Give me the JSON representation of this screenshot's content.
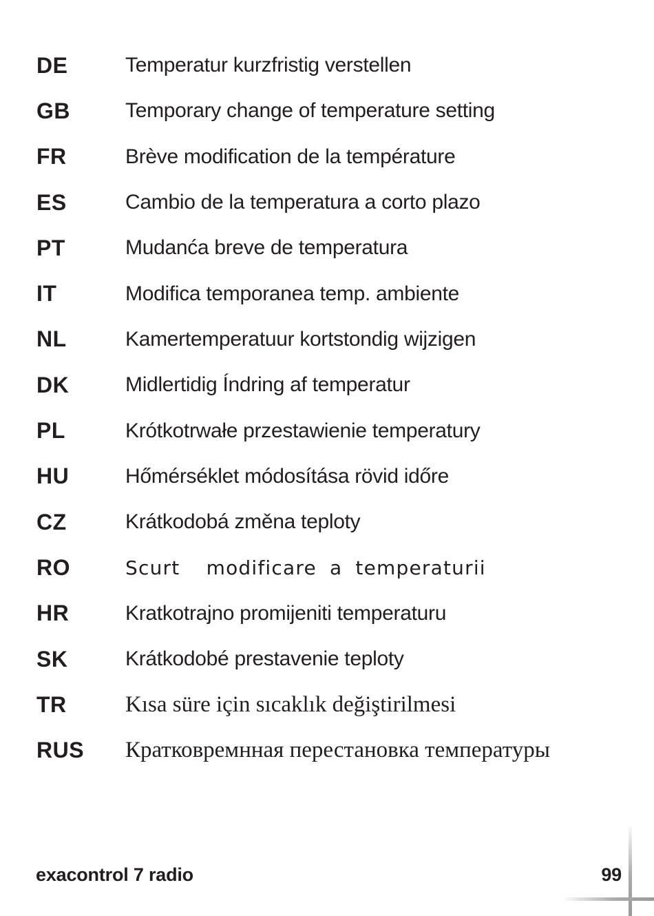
{
  "document": {
    "languages": [
      {
        "code": "DE",
        "text": "Temperatur kurzfristig verstellen",
        "style": "sans"
      },
      {
        "code": "GB",
        "text": "Temporary change of temperature setting",
        "style": "sans"
      },
      {
        "code": "FR",
        "text": "Brève modification de la température",
        "style": "sans"
      },
      {
        "code": "ES",
        "text": "Cambio de la temperatura a corto plazo",
        "style": "sans"
      },
      {
        "code": "PT",
        "text": "Mudanća breve de temperatura",
        "style": "sans"
      },
      {
        "code": "IT",
        "text": "Modifica temporanea temp. ambiente",
        "style": "sans"
      },
      {
        "code": "NL",
        "text": "Kamertemperatuur kortstondig wijzigen",
        "style": "sans"
      },
      {
        "code": "DK",
        "text": "Midlertidig Índring af temperatur",
        "style": "sans"
      },
      {
        "code": "PL",
        "text": "Krótkotrwałe przestawienie temperatury",
        "style": "sans"
      },
      {
        "code": "HU",
        "text": "Hőmérséklet módosítása rövid időre",
        "style": "sans"
      },
      {
        "code": "CZ",
        "text": "Krátkodobá změna teploty",
        "style": "sans"
      },
      {
        "code": "RO",
        "text": "Scurt  modificare a temperaturii",
        "style": "geometric"
      },
      {
        "code": "HR",
        "text": "Kratkotrajno promijeniti temperaturu",
        "style": "sans"
      },
      {
        "code": "SK",
        "text": "Krátkodobé prestavenie teploty",
        "style": "sans"
      },
      {
        "code": "TR",
        "text": "Kısa süre için sıcaklık değiştirilmesi",
        "style": "serif"
      },
      {
        "code": "RUS",
        "text": "Кратковремнная перестановка температуры",
        "style": "serif"
      }
    ],
    "footer": {
      "product_name": "exacontrol 7 radio",
      "page_number": "99"
    },
    "colors": {
      "text": "#221e1f",
      "background": "#ffffff",
      "crop_mark_gray": "#a0a0a0"
    }
  }
}
